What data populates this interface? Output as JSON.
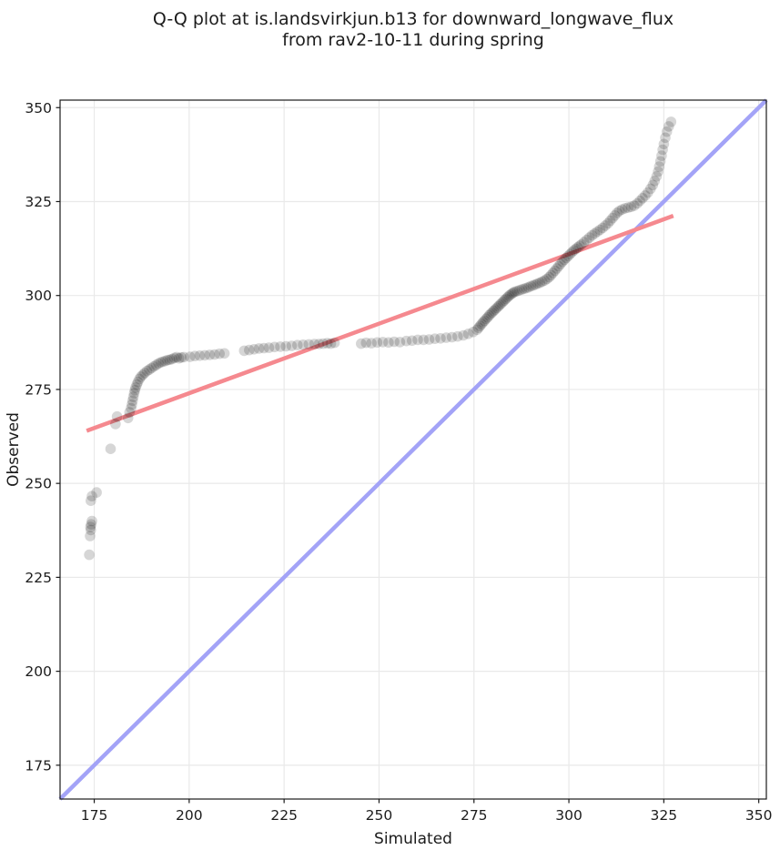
{
  "chart_data": {
    "type": "scatter",
    "title": "Q-Q plot at is.landsvirkjun.b13 for downward_longwave_flux from rav2-10-11 during spring",
    "title_line1": "Q-Q plot at is.landsvirkjun.b13 for downward_longwave_flux",
    "title_line2": "from rav2-10-11 during spring",
    "xlabel": "Simulated",
    "ylabel": "Observed",
    "xlim": [
      166,
      352
    ],
    "ylim": [
      166,
      352
    ],
    "xticks": [
      175,
      200,
      225,
      250,
      275,
      300,
      325,
      350
    ],
    "yticks": [
      175,
      200,
      225,
      250,
      275,
      300,
      325,
      350
    ],
    "grid": true,
    "grid_color": "#e9e9e9",
    "background_color": "#ffffff",
    "frame_color": "#1a1a1a",
    "identity_line": {
      "name": "one-to-one-line",
      "x1": 166,
      "y1": 166,
      "x2": 352,
      "y2": 352,
      "color": "#a3a3f7",
      "width": 4.5
    },
    "fit_line": {
      "name": "regression-line",
      "x1": 173.0,
      "y1": 264.0,
      "x2": 327.5,
      "y2": 321.2,
      "color": "#f5898f",
      "width": 4.5
    },
    "point_style": {
      "radius": 5.8,
      "color": "#000000",
      "opacity": 0.16
    },
    "points": [
      [
        173.7,
        231.0
      ],
      [
        173.9,
        236.0
      ],
      [
        174.1,
        237.6
      ],
      [
        174.0,
        238.4
      ],
      [
        174.2,
        239.1
      ],
      [
        174.4,
        240.0
      ],
      [
        174.1,
        245.4
      ],
      [
        174.4,
        246.6
      ],
      [
        175.6,
        247.6
      ],
      [
        179.3,
        259.2
      ],
      [
        180.6,
        265.8
      ],
      [
        181.0,
        267.8
      ],
      [
        183.9,
        267.4
      ],
      [
        184.3,
        268.9
      ],
      [
        184.7,
        270.0
      ],
      [
        184.9,
        271.0
      ],
      [
        185.1,
        272.0
      ],
      [
        185.3,
        273.0
      ],
      [
        185.5,
        274.0
      ],
      [
        185.7,
        274.8
      ],
      [
        185.9,
        275.5
      ],
      [
        186.2,
        276.3
      ],
      [
        186.5,
        277.0
      ],
      [
        186.9,
        277.8
      ],
      [
        187.3,
        278.4
      ],
      [
        187.8,
        278.9
      ],
      [
        188.3,
        279.4
      ],
      [
        188.9,
        279.9
      ],
      [
        189.5,
        280.3
      ],
      [
        190.1,
        280.7
      ],
      [
        190.7,
        281.1
      ],
      [
        191.3,
        281.5
      ],
      [
        191.9,
        281.9
      ],
      [
        192.5,
        282.2
      ],
      [
        193.1,
        282.4
      ],
      [
        193.7,
        282.6
      ],
      [
        194.3,
        282.8
      ],
      [
        194.9,
        282.9
      ],
      [
        195.5,
        283.1
      ],
      [
        196.1,
        283.4
      ],
      [
        196.7,
        283.6
      ],
      [
        197.3,
        283.3
      ],
      [
        197.9,
        283.5
      ],
      [
        198.6,
        283.6
      ],
      [
        200.2,
        283.7
      ],
      [
        201.5,
        283.9
      ],
      [
        202.8,
        284.0
      ],
      [
        204.1,
        284.1
      ],
      [
        205.4,
        284.2
      ],
      [
        206.7,
        284.3
      ],
      [
        208.0,
        284.5
      ],
      [
        209.3,
        284.6
      ],
      [
        214.5,
        285.3
      ],
      [
        215.8,
        285.5
      ],
      [
        217.1,
        285.7
      ],
      [
        218.4,
        285.9
      ],
      [
        219.7,
        286.0
      ],
      [
        221.0,
        286.1
      ],
      [
        222.5,
        286.3
      ],
      [
        224.0,
        286.4
      ],
      [
        225.5,
        286.5
      ],
      [
        227.0,
        286.6
      ],
      [
        228.5,
        286.8
      ],
      [
        230.0,
        286.9
      ],
      [
        231.5,
        287.0
      ],
      [
        233.0,
        287.1
      ],
      [
        234.2,
        287.1
      ],
      [
        235.3,
        287.2
      ],
      [
        236.4,
        287.3
      ],
      [
        237.3,
        287.2
      ],
      [
        238.3,
        287.4
      ],
      [
        245.3,
        287.2
      ],
      [
        246.6,
        287.4
      ],
      [
        248.0,
        287.3
      ],
      [
        249.5,
        287.5
      ],
      [
        251.0,
        287.6
      ],
      [
        252.5,
        287.5
      ],
      [
        254.0,
        287.7
      ],
      [
        255.5,
        287.6
      ],
      [
        257.2,
        287.9
      ],
      [
        258.7,
        288.0
      ],
      [
        260.2,
        288.2
      ],
      [
        261.7,
        288.2
      ],
      [
        263.2,
        288.3
      ],
      [
        264.7,
        288.5
      ],
      [
        266.2,
        288.6
      ],
      [
        267.7,
        288.8
      ],
      [
        269.2,
        288.9
      ],
      [
        270.7,
        289.1
      ],
      [
        272.2,
        289.4
      ],
      [
        273.5,
        289.8
      ],
      [
        274.8,
        290.3
      ],
      [
        275.8,
        290.9
      ],
      [
        276.2,
        291.4
      ],
      [
        276.6,
        291.9
      ],
      [
        277.0,
        292.4
      ],
      [
        277.4,
        292.9
      ],
      [
        277.8,
        293.3
      ],
      [
        278.2,
        293.8
      ],
      [
        278.6,
        294.2
      ],
      [
        279.0,
        294.7
      ],
      [
        279.4,
        295.1
      ],
      [
        279.8,
        295.5
      ],
      [
        280.2,
        295.9
      ],
      [
        280.6,
        296.3
      ],
      [
        281.0,
        296.7
      ],
      [
        281.4,
        297.1
      ],
      [
        281.8,
        297.5
      ],
      [
        282.2,
        297.9
      ],
      [
        282.6,
        298.3
      ],
      [
        283.0,
        298.7
      ],
      [
        283.4,
        299.1
      ],
      [
        283.8,
        299.5
      ],
      [
        284.2,
        299.9
      ],
      [
        284.6,
        300.2
      ],
      [
        285.0,
        300.5
      ],
      [
        285.4,
        300.8
      ],
      [
        285.8,
        301.0
      ],
      [
        286.4,
        301.2
      ],
      [
        287.0,
        301.4
      ],
      [
        287.6,
        301.6
      ],
      [
        288.2,
        301.8
      ],
      [
        288.8,
        302.0
      ],
      [
        289.4,
        302.2
      ],
      [
        290.0,
        302.5
      ],
      [
        290.6,
        302.7
      ],
      [
        291.2,
        302.9
      ],
      [
        291.8,
        303.2
      ],
      [
        292.4,
        303.4
      ],
      [
        293.0,
        303.7
      ],
      [
        293.6,
        304.0
      ],
      [
        294.2,
        304.4
      ],
      [
        294.8,
        304.9
      ],
      [
        295.3,
        305.4
      ],
      [
        295.8,
        306.0
      ],
      [
        296.3,
        306.6
      ],
      [
        296.8,
        307.2
      ],
      [
        297.3,
        307.8
      ],
      [
        297.8,
        308.4
      ],
      [
        298.3,
        309.0
      ],
      [
        298.8,
        309.5
      ],
      [
        299.3,
        310.0
      ],
      [
        299.8,
        310.5
      ],
      [
        300.3,
        311.0
      ],
      [
        300.8,
        311.5
      ],
      [
        301.3,
        312.0
      ],
      [
        301.8,
        312.4
      ],
      [
        302.3,
        312.8
      ],
      [
        302.8,
        313.2
      ],
      [
        303.3,
        313.6
      ],
      [
        304.0,
        314.2
      ],
      [
        304.7,
        314.8
      ],
      [
        305.4,
        315.4
      ],
      [
        306.1,
        316.0
      ],
      [
        306.8,
        316.5
      ],
      [
        307.5,
        317.0
      ],
      [
        308.2,
        317.5
      ],
      [
        308.9,
        318.0
      ],
      [
        309.6,
        318.6
      ],
      [
        310.3,
        319.2
      ],
      [
        310.9,
        319.9
      ],
      [
        311.5,
        320.6
      ],
      [
        312.1,
        321.3
      ],
      [
        312.7,
        322.0
      ],
      [
        313.3,
        322.5
      ],
      [
        314.0,
        322.9
      ],
      [
        314.8,
        323.2
      ],
      [
        315.6,
        323.4
      ],
      [
        316.4,
        323.6
      ],
      [
        317.2,
        323.9
      ],
      [
        318.0,
        324.5
      ],
      [
        318.7,
        325.2
      ],
      [
        319.4,
        325.9
      ],
      [
        320.1,
        326.6
      ],
      [
        320.8,
        327.4
      ],
      [
        321.5,
        328.4
      ],
      [
        322.1,
        329.4
      ],
      [
        322.6,
        330.5
      ],
      [
        323.1,
        331.7
      ],
      [
        323.5,
        333.0
      ],
      [
        323.8,
        334.3
      ],
      [
        324.1,
        335.7
      ],
      [
        324.4,
        337.2
      ],
      [
        324.7,
        338.8
      ],
      [
        325.0,
        340.3
      ],
      [
        325.4,
        342.0
      ],
      [
        325.8,
        343.6
      ],
      [
        326.3,
        345.0
      ],
      [
        326.9,
        346.2
      ]
    ]
  }
}
